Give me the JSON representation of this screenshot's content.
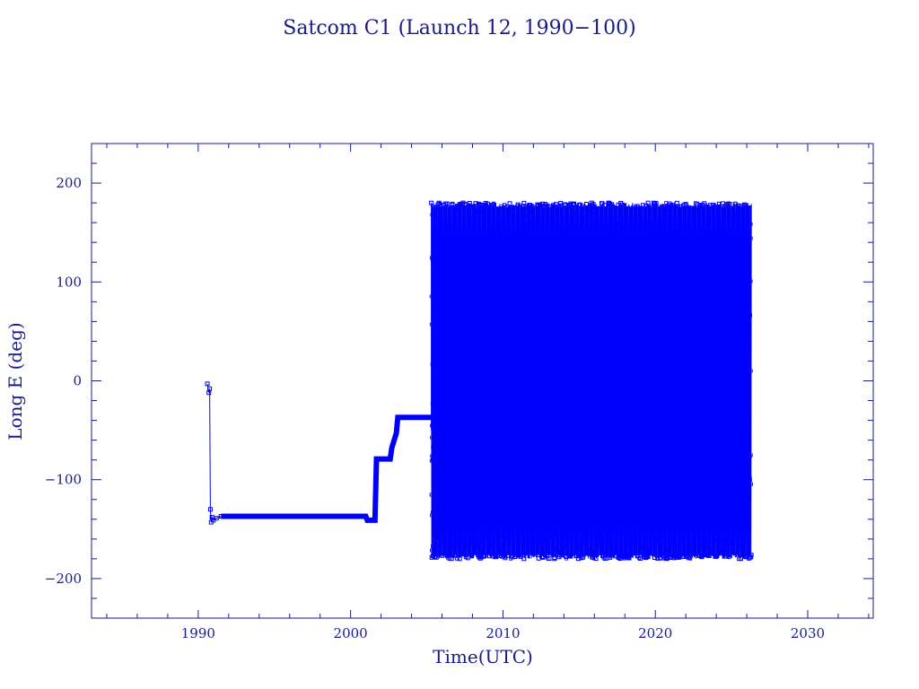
{
  "chart_data": {
    "type": "line",
    "title": "Satcom C1 (Launch 12, 1990−100)",
    "xlabel": "Time(UTC)",
    "ylabel": "Long E (deg)",
    "xlim": [
      1983,
      2034.3
    ],
    "ylim": [
      -240,
      240
    ],
    "x_ticks": [
      1990,
      2000,
      2010,
      2020,
      2030
    ],
    "x_tick_labels": [
      "1990",
      "2000",
      "2010",
      "2020",
      "2030"
    ],
    "y_ticks": [
      -200,
      -100,
      0,
      100,
      200
    ],
    "y_tick_labels": [
      "−200",
      "−100",
      "0",
      "100",
      "200"
    ],
    "grid": false,
    "colors": {
      "series": "#0000ff",
      "text": "#1a1a8c",
      "axis": "#1a1a8c"
    },
    "series": [
      {
        "segments": [
          {
            "kind": "points",
            "x": [
              1990.6,
              1990.7,
              1990.75,
              1990.8,
              1990.85,
              1990.9,
              1991.0,
              1991.2,
              1991.5
            ],
            "y": [
              -3,
              -12,
              -8,
              -130,
              -143,
              -138,
              -141,
              -139,
              -137
            ]
          },
          {
            "kind": "line",
            "x": [
              1991.5,
              2001.0,
              2001.1,
              2001.6,
              2001.7,
              2002.6,
              2002.7,
              2003.0,
              2003.1,
              2005.3
            ],
            "y": [
              -137,
              -137,
              -141,
              -141,
              -79,
              -79,
              -68,
              -53,
              -37,
              -37
            ]
          },
          {
            "kind": "oscillation",
            "x_range": [
              2005.3,
              2026.3
            ],
            "y_range": [
              -180,
              180
            ]
          }
        ]
      }
    ]
  }
}
